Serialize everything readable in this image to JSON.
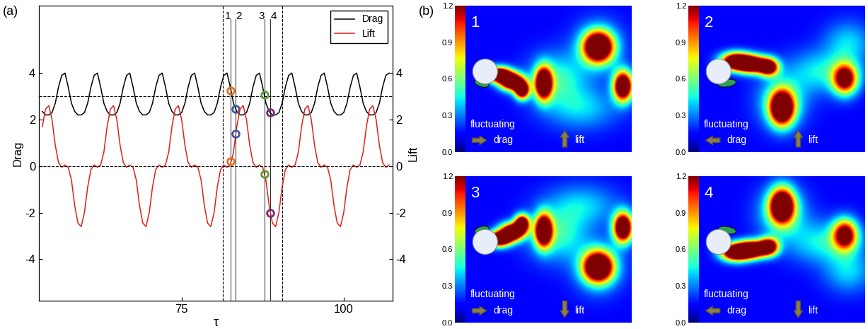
{
  "chart_data": {
    "type": "line",
    "panel_label": "(a)",
    "xlabel": "τ",
    "ylabel": "Drag",
    "y2label": "Lift",
    "xlim": [
      53.0,
      107.5
    ],
    "xticks": [
      75,
      100
    ],
    "ylim": [
      -5.8,
      6.9
    ],
    "yticks": [
      -4,
      -2,
      0,
      2,
      4
    ],
    "y2lim": [
      -5.8,
      6.9
    ],
    "y2ticks": [
      -4,
      -2,
      0,
      2,
      4
    ],
    "legend": "upper right",
    "x": [
      53.5,
      54.0,
      54.5,
      55.0,
      55.5,
      56.0,
      56.5,
      57.0,
      57.5,
      58.0,
      58.5,
      59.0,
      59.5,
      60.0,
      60.5,
      61.0,
      61.5,
      62.0,
      62.5,
      63.0,
      63.5,
      64.0,
      64.5,
      65.0,
      65.5,
      66.0,
      66.5,
      67.0,
      67.5,
      68.0,
      68.5,
      69.0,
      69.5,
      70.0,
      70.5,
      71.0,
      71.5,
      72.0,
      72.5,
      73.0,
      73.5,
      74.0,
      74.5,
      75.0,
      75.5,
      76.0,
      76.5,
      77.0,
      77.5,
      78.0,
      78.5,
      79.0,
      79.5,
      80.0,
      80.5,
      81.0,
      81.5,
      82.0,
      82.5,
      83.0,
      83.5,
      84.0,
      84.5,
      85.0,
      85.5,
      86.0,
      86.5,
      87.0,
      87.5,
      88.0,
      88.5,
      89.0,
      89.5,
      90.0,
      90.5,
      91.0,
      91.5,
      92.0,
      92.5,
      93.0,
      93.5,
      94.0,
      94.5,
      95.0,
      95.5,
      96.0,
      96.5,
      97.0,
      97.5,
      98.0,
      98.5,
      99.0,
      99.5,
      100.0,
      100.5,
      101.0,
      101.5,
      102.0,
      102.5,
      103.0,
      103.5,
      104.0,
      104.5,
      105.0,
      105.5,
      106.0,
      106.5,
      107.0
    ],
    "series": [
      {
        "name": "Drag",
        "color": "#000000",
        "values": [
          2.35,
          2.2,
          2.2,
          2.3,
          2.7,
          3.4,
          3.9,
          4.0,
          3.4,
          2.7,
          2.35,
          2.2,
          2.2,
          2.3,
          2.7,
          3.4,
          3.9,
          4.0,
          3.4,
          2.7,
          2.35,
          2.2,
          2.2,
          2.3,
          2.7,
          3.4,
          3.9,
          4.0,
          3.4,
          2.7,
          2.35,
          2.2,
          2.2,
          2.3,
          2.7,
          3.4,
          3.9,
          4.0,
          3.4,
          2.7,
          2.35,
          2.2,
          2.2,
          2.3,
          2.7,
          3.4,
          3.9,
          4.0,
          3.4,
          2.7,
          2.35,
          2.2,
          2.2,
          2.3,
          2.7,
          3.4,
          3.9,
          4.0,
          3.4,
          2.7,
          2.35,
          2.2,
          2.2,
          2.3,
          2.7,
          3.4,
          3.9,
          4.0,
          3.4,
          2.7,
          2.35,
          2.2,
          2.2,
          2.3,
          2.7,
          3.4,
          3.9,
          4.0,
          3.4,
          2.7,
          2.35,
          2.2,
          2.2,
          2.3,
          2.7,
          3.4,
          3.9,
          4.0,
          3.4,
          2.7,
          2.35,
          2.2,
          2.2,
          2.3,
          2.7,
          3.4,
          3.9,
          4.0,
          3.4,
          2.7,
          2.35,
          2.2,
          2.2,
          2.3,
          2.7,
          3.4,
          3.9,
          4.0
        ]
      },
      {
        "name": "Lift",
        "color": "#e0201b",
        "axis": "y2",
        "values": [
          1.7,
          2.45,
          2.6,
          2.0,
          0.9,
          0.15,
          -0.05,
          0.05,
          -0.05,
          -0.6,
          -1.7,
          -2.45,
          -2.6,
          -2.0,
          -0.9,
          -0.15,
          0.05,
          -0.05,
          0.05,
          0.6,
          1.7,
          2.45,
          2.6,
          2.0,
          0.9,
          0.15,
          -0.05,
          0.05,
          -0.05,
          -0.6,
          -1.7,
          -2.45,
          -2.6,
          -2.0,
          -0.9,
          -0.15,
          0.05,
          -0.05,
          0.05,
          0.6,
          1.7,
          2.45,
          2.6,
          2.0,
          0.9,
          0.15,
          -0.05,
          0.05,
          -0.05,
          -0.6,
          -1.7,
          -2.45,
          -2.6,
          -2.0,
          -0.9,
          -0.15,
          0.05,
          -0.05,
          0.05,
          0.6,
          1.7,
          2.45,
          2.6,
          2.0,
          0.9,
          0.15,
          -0.05,
          0.05,
          -0.05,
          -0.6,
          -1.7,
          -2.45,
          -2.6,
          -2.0,
          -0.9,
          -0.15,
          0.05,
          -0.05,
          0.05,
          0.6,
          1.7,
          2.45,
          2.6,
          2.0,
          0.9,
          0.15,
          -0.05,
          0.05,
          -0.05,
          -0.6,
          -1.7,
          -2.45,
          -2.6,
          -2.0,
          -0.9,
          -0.15,
          0.05,
          -0.05,
          0.05,
          0.6,
          1.7,
          2.45,
          2.6,
          2.0,
          0.9,
          0.15,
          -0.05,
          0.05
        ]
      }
    ],
    "reference_lines": {
      "y": 3,
      "y2": 0
    },
    "period_bounds": [
      81.4,
      90.5
    ],
    "instants": [
      {
        "label": "1",
        "x": 82.6,
        "drag": 3.25,
        "lift": 0.2,
        "color": "#e07020"
      },
      {
        "label": "2",
        "x": 83.35,
        "drag": 2.45,
        "lift": 1.4,
        "color": "#3a5aa0"
      },
      {
        "label": "3",
        "x": 87.75,
        "drag": 3.05,
        "lift": -0.33,
        "color": "#5a9a3a"
      },
      {
        "label": "4",
        "x": 88.7,
        "drag": 2.3,
        "lift": -2.0,
        "color": "#7a2a7a"
      }
    ]
  },
  "snapshots": {
    "panel_label": "(b)",
    "colorbar": {
      "range": [
        0,
        1.2
      ],
      "ticks": [
        {
          "value": 0,
          "label": "0.0"
        },
        0.3,
        0.6,
        0.9,
        1.2
      ]
    },
    "frames": [
      {
        "label": "1",
        "drag_text": [
          "fluctuating",
          "drag"
        ],
        "drag_direction": "right",
        "lift_text": "lift",
        "lift_direction": "up"
      },
      {
        "label": "2",
        "drag_text": [
          "fluctuating",
          "drag"
        ],
        "drag_direction": "left",
        "lift_text": "lift",
        "lift_direction": "up"
      },
      {
        "label": "3",
        "drag_text": [
          "fluctuating",
          "drag"
        ],
        "drag_direction": "right",
        "lift_text": "lift",
        "lift_direction": "down"
      },
      {
        "label": "4",
        "drag_text": [
          "fluctuating",
          "drag"
        ],
        "drag_direction": "left",
        "lift_text": "lift",
        "lift_direction": "down"
      }
    ]
  }
}
